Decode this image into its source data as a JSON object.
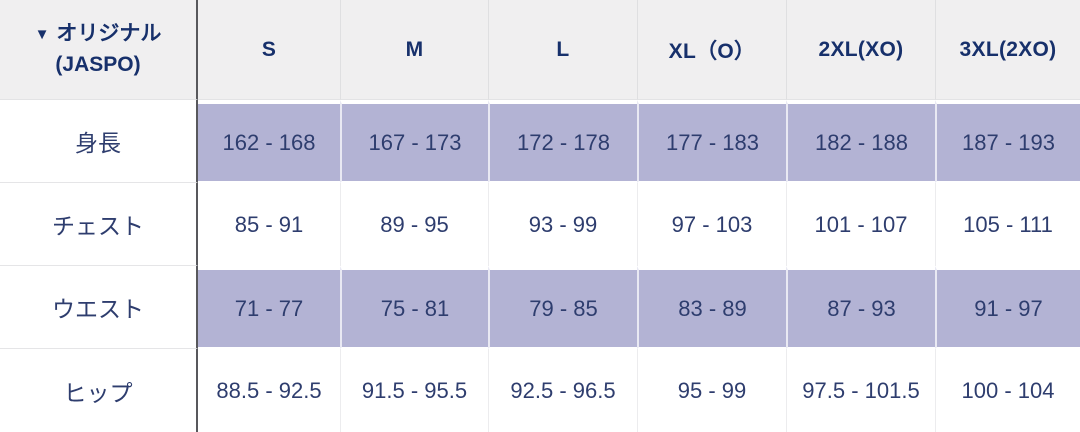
{
  "colors": {
    "header_background": "#f0eff0",
    "highlight_purple": "#b3b3d4",
    "heading_navy": "#17306b",
    "body_navy": "#2e3d6e",
    "dark_divider": "#58585c"
  },
  "size_chart": {
    "corner": {
      "icon": "▼",
      "title": "オリジナル",
      "subtitle": "(JASPO)"
    },
    "columns": [
      "S",
      "M",
      "L",
      "XL（O）",
      "2XL(XO)",
      "3XL(2XO)"
    ],
    "rows": [
      {
        "label": "身長",
        "highlighted": true,
        "values": [
          "162 - 168",
          "167 - 173",
          "172 - 178",
          "177 - 183",
          "182 - 188",
          "187 - 193"
        ]
      },
      {
        "label": "チェスト",
        "highlighted": false,
        "values": [
          "85 - 91",
          "89 - 95",
          "93 - 99",
          "97 - 103",
          "101 - 107",
          "105 - 111"
        ]
      },
      {
        "label": "ウエスト",
        "highlighted": true,
        "values": [
          "71 - 77",
          "75 - 81",
          "79 - 85",
          "83 - 89",
          "87 - 93",
          "91 - 97"
        ]
      },
      {
        "label": "ヒップ",
        "highlighted": false,
        "values": [
          "88.5 - 92.5",
          "91.5 - 95.5",
          "92.5 - 96.5",
          "95 - 99",
          "97.5 - 101.5",
          "100 - 104"
        ]
      }
    ]
  }
}
